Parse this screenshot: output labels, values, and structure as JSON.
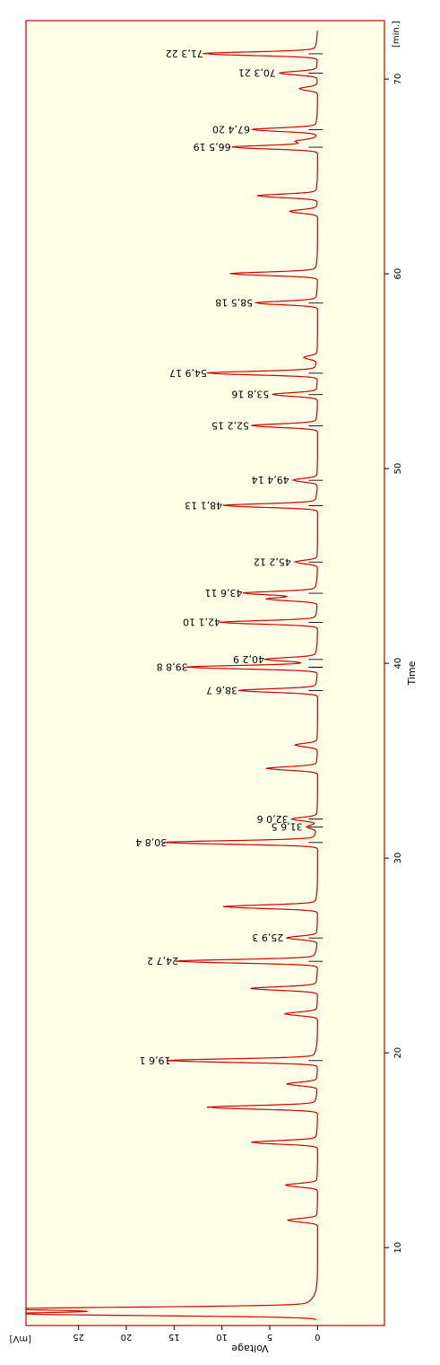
{
  "chart_data": {
    "type": "line",
    "xlabel": "Time",
    "xunit": "[min.]",
    "ylabel": "Voltage",
    "yunit": "[mV]",
    "xlim": [
      6,
      73
    ],
    "ylim": [
      -7,
      30.5
    ],
    "x_ticks": [
      10,
      20,
      30,
      40,
      50,
      60,
      70
    ],
    "y_ticks": [
      0,
      5,
      10,
      15,
      20,
      25
    ],
    "grid": false,
    "orientation": "rotated-180",
    "colors": {
      "background": "#ffffe8",
      "frame": "#cc0000",
      "trace": "#cc0000",
      "marker": "#000000"
    },
    "baseline": 0,
    "peaks": [
      {
        "t": 6.6,
        "h": 30.0
      },
      {
        "t": 6.85,
        "h": 30.0
      },
      {
        "t": 11.4,
        "h": 3.0
      },
      {
        "t": 13.2,
        "h": 3.2
      },
      {
        "t": 15.4,
        "h": 6.6
      },
      {
        "t": 17.2,
        "h": 11.0
      },
      {
        "t": 18.4,
        "h": 3.0
      },
      {
        "t": 19.6,
        "h": 14.8,
        "label": "19,6",
        "num": "1"
      },
      {
        "t": 22.0,
        "h": 3.2
      },
      {
        "t": 23.3,
        "h": 6.6
      },
      {
        "t": 24.7,
        "h": 14.0,
        "label": "24,7",
        "num": "2"
      },
      {
        "t": 25.9,
        "h": 3.0,
        "label": "25,9",
        "num": "3"
      },
      {
        "t": 27.5,
        "h": 9.3
      },
      {
        "t": 30.8,
        "h": 15.2,
        "label": "30,8",
        "num": "4"
      },
      {
        "t": 31.6,
        "h": 1.0,
        "label": "31,6",
        "num": "5"
      },
      {
        "t": 32.0,
        "h": 2.5,
        "label": "32,0",
        "num": "6"
      },
      {
        "t": 34.6,
        "h": 5.0
      },
      {
        "t": 35.8,
        "h": 2.2
      },
      {
        "t": 38.6,
        "h": 7.8,
        "label": "38,6",
        "num": "7"
      },
      {
        "t": 39.8,
        "h": 13.0,
        "label": "39,8",
        "num": "8"
      },
      {
        "t": 40.2,
        "h": 5.0,
        "label": "40,2",
        "num": "9"
      },
      {
        "t": 42.1,
        "h": 9.6,
        "label": "42,1",
        "num": "10"
      },
      {
        "t": 43.3,
        "h": 5.0
      },
      {
        "t": 43.6,
        "h": 7.3,
        "label": "43,6",
        "num": "11"
      },
      {
        "t": 45.2,
        "h": 2.2,
        "label": "45,2",
        "num": "12"
      },
      {
        "t": 48.1,
        "h": 9.4,
        "label": "48,1",
        "num": "13"
      },
      {
        "t": 49.4,
        "h": 2.4,
        "label": "49,4",
        "num": "14"
      },
      {
        "t": 52.2,
        "h": 6.6,
        "label": "52,2",
        "num": "15"
      },
      {
        "t": 53.8,
        "h": 4.5,
        "label": "53,8",
        "num": "16"
      },
      {
        "t": 54.9,
        "h": 11.0,
        "label": "54,9",
        "num": "17"
      },
      {
        "t": 55.7,
        "h": 1.3
      },
      {
        "t": 58.5,
        "h": 6.2,
        "label": "58,5",
        "num": "18"
      },
      {
        "t": 60.0,
        "h": 8.7
      },
      {
        "t": 63.2,
        "h": 2.8
      },
      {
        "t": 64.0,
        "h": 6.0
      },
      {
        "t": 66.5,
        "h": 8.5,
        "label": "66,5",
        "num": "19"
      },
      {
        "t": 66.8,
        "h": 2.0
      },
      {
        "t": 67.4,
        "h": 6.5,
        "label": "67,4",
        "num": "20"
      },
      {
        "t": 69.5,
        "h": 1.8
      },
      {
        "t": 70.3,
        "h": 3.8,
        "label": "70,3",
        "num": "21"
      },
      {
        "t": 71.3,
        "h": 11.4,
        "label": "71,3",
        "num": "22"
      }
    ]
  }
}
